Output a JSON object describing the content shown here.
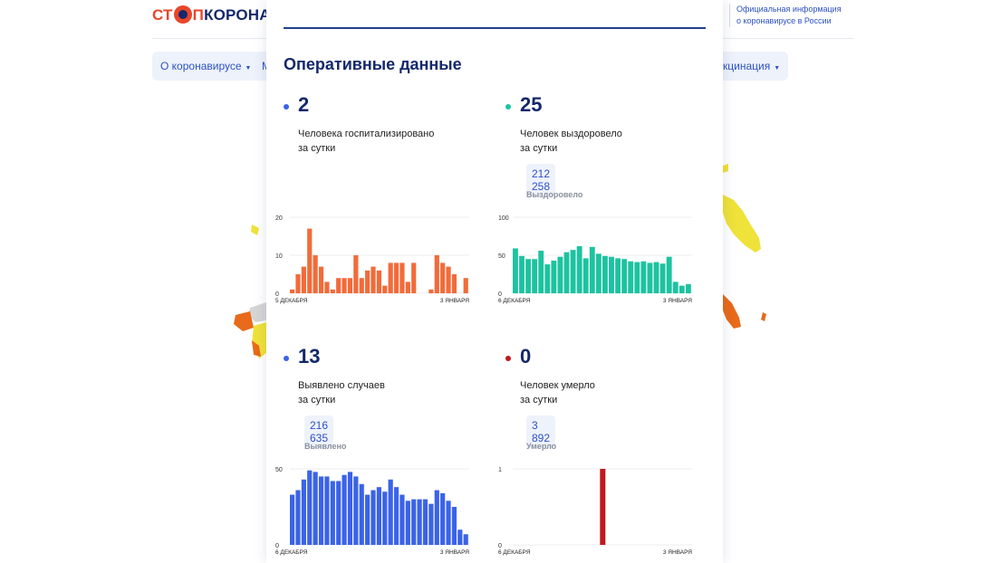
{
  "site": {
    "logo_part1": "СТ",
    "logo_part2": "П",
    "logo_part3": "КОРОНАВИ",
    "official_line1": "Официальная информация",
    "official_line2": "о коронавирусе в России"
  },
  "nav": {
    "about_label": "О коронавирусе",
    "m_label": "М",
    "vaccination_label": "кцинация"
  },
  "colors": {
    "hospitalized": "#f26b3a",
    "recovered": "#1dc3a0",
    "cases": "#3b63e8",
    "deaths": "#c0191f",
    "map_yellow": "#efe23a",
    "map_orange": "#e86a1a",
    "map_gray": "#d5d5d5"
  },
  "panel": {
    "title": "Оперативные данные",
    "stats": {
      "hospitalized": {
        "value": "2",
        "label_line1": "Человека госпитализировано",
        "label_line2": "за сутки"
      },
      "recovered": {
        "value": "25",
        "label_line1": "Человек выздоровело",
        "label_line2": "за сутки",
        "total_value": "212 258",
        "total_label": "Выздоровело"
      },
      "cases": {
        "value": "13",
        "label_line1": "Выявлено случаев",
        "label_line2": "за сутки",
        "total_value": "216 635",
        "total_label": "Выявлено"
      },
      "deaths": {
        "value": "0",
        "label_line1": "Человек умерло",
        "label_line2": "за сутки",
        "total_value": "3 892",
        "total_label": "Умерло"
      }
    }
  },
  "chart_data": [
    {
      "type": "bar",
      "name": "hospitalized",
      "x_start_label": "5 ДЕКАБРЯ",
      "x_end_label": "3 ЯНВАРЯ",
      "y_ticks": [
        "0",
        "10",
        "20"
      ],
      "ylim": [
        0,
        20
      ],
      "values": [
        1,
        5,
        7,
        17,
        10,
        7,
        3,
        1,
        4,
        4,
        4,
        10,
        4,
        6,
        7,
        6,
        2,
        8,
        8,
        8,
        3,
        8,
        0,
        0,
        1,
        10,
        8,
        7,
        5,
        0,
        4
      ]
    },
    {
      "type": "bar",
      "name": "recovered",
      "x_start_label": "6 ДЕКАБРЯ",
      "x_end_label": "3 ЯНВАРЯ",
      "y_ticks": [
        "0",
        "50",
        "100"
      ],
      "ylim": [
        0,
        100
      ],
      "values": [
        59,
        49,
        45,
        45,
        56,
        38,
        43,
        48,
        54,
        57,
        62,
        46,
        61,
        52,
        49,
        48,
        46,
        45,
        42,
        41,
        42,
        40,
        41,
        39,
        48,
        15,
        10,
        12
      ]
    },
    {
      "type": "bar",
      "name": "cases",
      "x_start_label": "6 ДЕКАБРЯ",
      "x_end_label": "3 ЯНВАРЯ",
      "y_ticks": [
        "0",
        "50"
      ],
      "ylim": [
        0,
        50
      ],
      "values": [
        33,
        36,
        43,
        49,
        48,
        45,
        45,
        42,
        42,
        46,
        48,
        45,
        40,
        33,
        36,
        38,
        35,
        43,
        38,
        33,
        29,
        30,
        30,
        30,
        27,
        36,
        34,
        29,
        25,
        10,
        7
      ]
    },
    {
      "type": "bar",
      "name": "deaths",
      "x_start_label": "6 ДЕКАБРЯ",
      "x_end_label": "3 ЯНВАРЯ",
      "y_ticks": [
        "0",
        "1"
      ],
      "ylim": [
        0,
        1
      ],
      "values": [
        0,
        0,
        0,
        0,
        0,
        0,
        0,
        0,
        0,
        0,
        0,
        0,
        0,
        0,
        0,
        0,
        0,
        0,
        1,
        0,
        0,
        0,
        0,
        0,
        0,
        0,
        0,
        0,
        0,
        0,
        0,
        0,
        0,
        0,
        0,
        0,
        0
      ]
    }
  ]
}
